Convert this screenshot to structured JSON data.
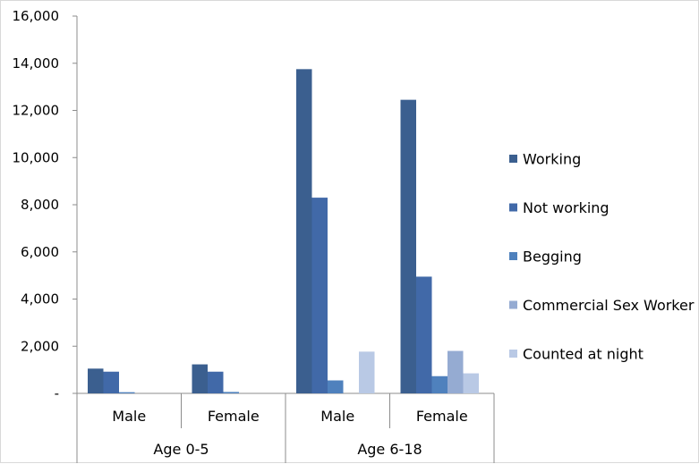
{
  "chart_data": {
    "type": "bar",
    "groups": [
      {
        "label": "Age 0-5",
        "categories": [
          "Male",
          "Female"
        ]
      },
      {
        "label": "Age 6-18",
        "categories": [
          "Male",
          "Female"
        ]
      }
    ],
    "categories": [
      "Male",
      "Female",
      "Male",
      "Female"
    ],
    "series": [
      {
        "name": "Working",
        "color": "#3b5f8f",
        "values": [
          1050,
          1230,
          13750,
          12450
        ]
      },
      {
        "name": "Not working",
        "color": "#4169a8",
        "values": [
          920,
          920,
          8300,
          4950
        ]
      },
      {
        "name": "Begging",
        "color": "#4f81bd",
        "values": [
          50,
          60,
          550,
          730
        ]
      },
      {
        "name": "Commercial Sex Worker",
        "color": "#95abd2",
        "values": [
          0,
          0,
          0,
          1800
        ]
      },
      {
        "name": "Counted at night",
        "color": "#b9c9e5",
        "values": [
          0,
          0,
          1770,
          850
        ]
      }
    ],
    "y_ticks": [
      "-",
      "2,000",
      "4,000",
      "6,000",
      "8,000",
      "10,000",
      "12,000",
      "14,000",
      "16,000"
    ],
    "ylim": [
      0,
      16000
    ],
    "title": "",
    "xlabel": "",
    "ylabel": "",
    "grid": false,
    "legend_position": "right"
  }
}
